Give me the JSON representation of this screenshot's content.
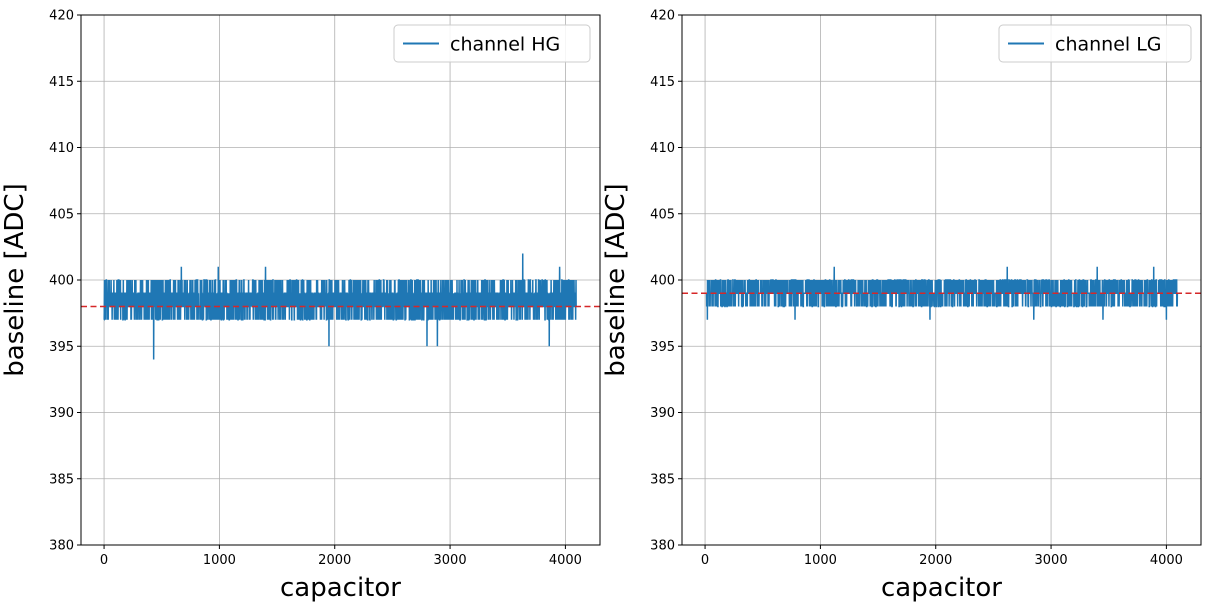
{
  "chart_data": [
    {
      "type": "line",
      "xlabel": "capacitor",
      "ylabel": "baseline [ADC]",
      "xlim": [
        -200,
        4300
      ],
      "ylim": [
        380,
        420
      ],
      "xticks": [
        0,
        1000,
        2000,
        3000,
        4000
      ],
      "yticks": [
        380,
        385,
        390,
        395,
        400,
        405,
        410,
        415,
        420
      ],
      "grid": true,
      "legend_position": "top-right",
      "baseline_reference": 398,
      "series": [
        {
          "name": "channel HG",
          "color": "#1f77b4",
          "x_range": [
            0,
            4095
          ],
          "typical_range": [
            397,
            400
          ],
          "excursions": [
            {
              "x": 430,
              "y": 394
            },
            {
              "x": 670,
              "y": 395
            },
            {
              "x": 1950,
              "y": 395
            },
            {
              "x": 2800,
              "y": 395
            },
            {
              "x": 2890,
              "y": 395
            },
            {
              "x": 3860,
              "y": 395
            },
            {
              "x": 670,
              "y": 401
            },
            {
              "x": 990,
              "y": 401
            },
            {
              "x": 1400,
              "y": 401
            },
            {
              "x": 3630,
              "y": 402
            },
            {
              "x": 3950,
              "y": 401
            }
          ]
        }
      ],
      "reference_line": {
        "y": 398,
        "color": "#d62728",
        "style": "dashed"
      }
    },
    {
      "type": "line",
      "xlabel": "capacitor",
      "ylabel": "baseline [ADC]",
      "xlim": [
        -200,
        4300
      ],
      "ylim": [
        380,
        420
      ],
      "xticks": [
        0,
        1000,
        2000,
        3000,
        4000
      ],
      "yticks": [
        380,
        385,
        390,
        395,
        400,
        405,
        410,
        415,
        420
      ],
      "grid": true,
      "legend_position": "top-right",
      "series": [
        {
          "name": "channel LG",
          "color": "#1f77b4",
          "x_range": [
            0,
            4095
          ],
          "typical_range": [
            398,
            400
          ],
          "excursions": [
            {
              "x": 1120,
              "y": 401
            },
            {
              "x": 2620,
              "y": 401
            },
            {
              "x": 3400,
              "y": 401
            },
            {
              "x": 3890,
              "y": 401
            },
            {
              "x": 20,
              "y": 397
            },
            {
              "x": 780,
              "y": 397
            },
            {
              "x": 1950,
              "y": 397
            },
            {
              "x": 2850,
              "y": 397
            },
            {
              "x": 3450,
              "y": 397
            },
            {
              "x": 4000,
              "y": 397
            }
          ]
        }
      ],
      "reference_line": {
        "y": 399,
        "color": "#d62728",
        "style": "dashed"
      }
    }
  ]
}
